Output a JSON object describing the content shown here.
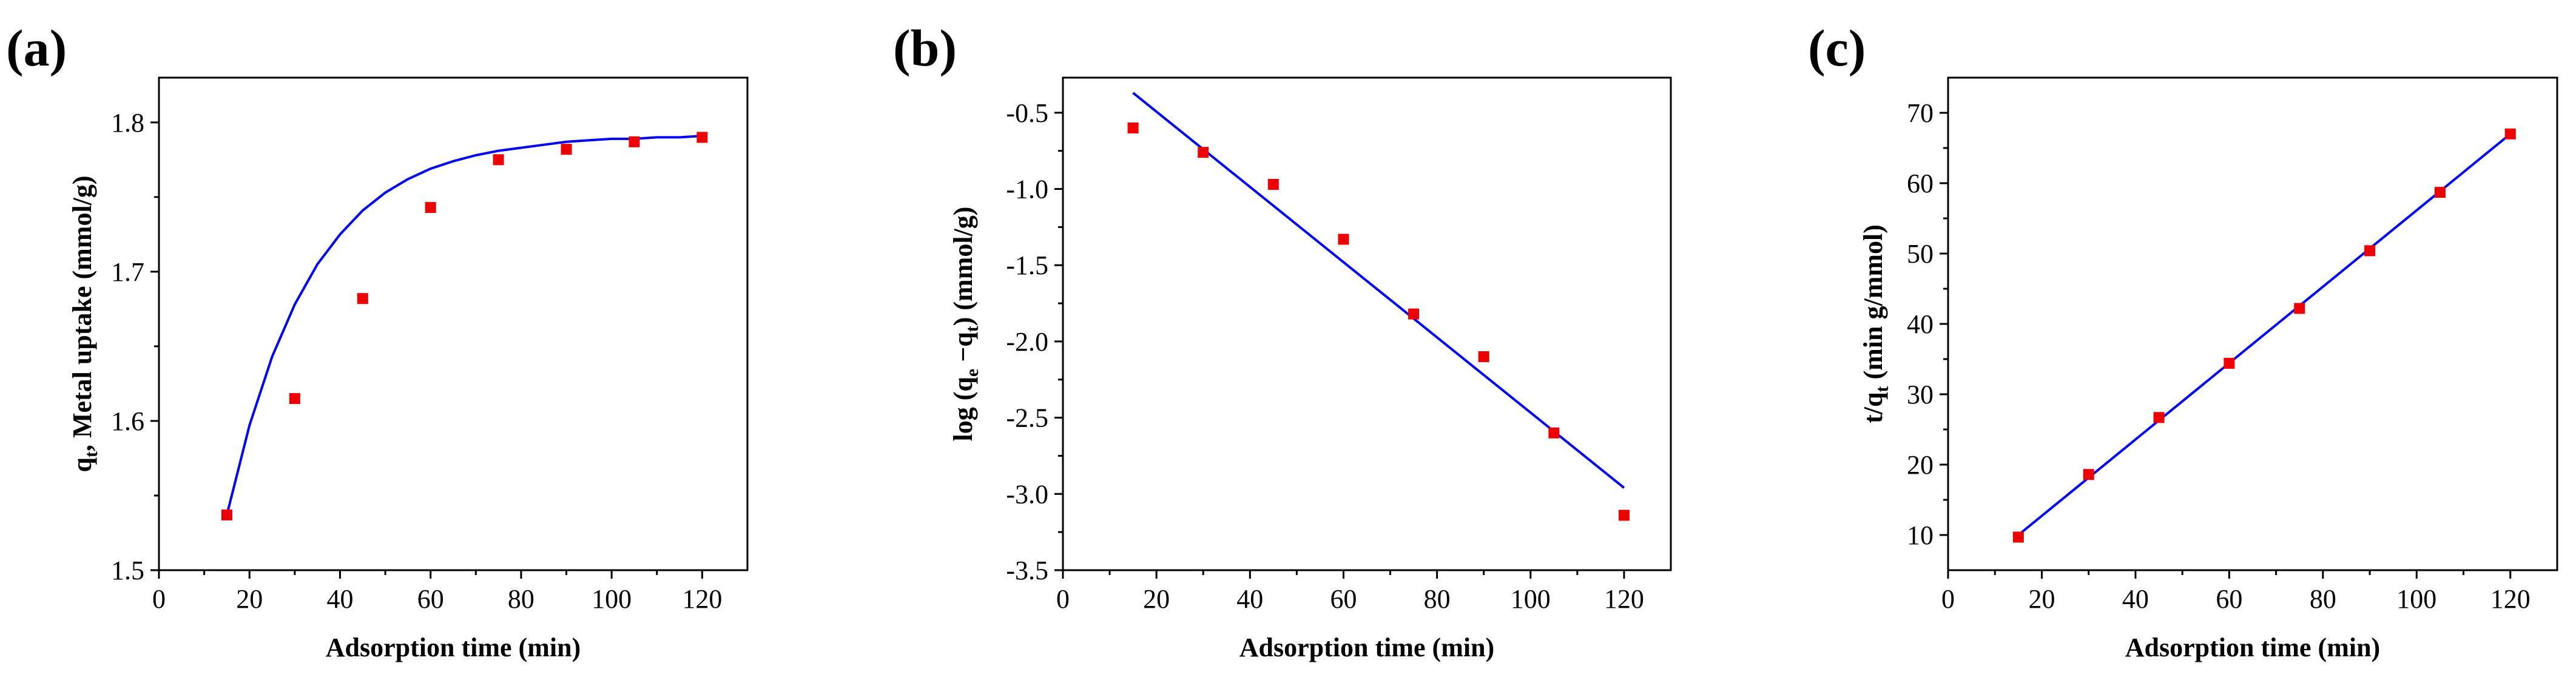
{
  "colors": {
    "points": "#ee0000",
    "fit": "#0000ee",
    "axis": "#000000"
  },
  "chart_data": [
    {
      "type": "scatter",
      "panel_label": "(a)",
      "xlabel": "Adsorption time (min)",
      "ylabel": {
        "pre": "q",
        "sub": "t",
        "post": ", Metal uptake (mmol/g)"
      },
      "xlim": [
        0,
        130
      ],
      "ylim": [
        1.5,
        1.83
      ],
      "xticks": [
        0,
        20,
        40,
        60,
        80,
        100,
        120
      ],
      "yticks": [
        1.5,
        1.6,
        1.7,
        1.8
      ],
      "ytick_labels": [
        "1.5",
        "1.6",
        "1.7",
        "1.8"
      ],
      "x": [
        15,
        30,
        45,
        60,
        75,
        90,
        105,
        120
      ],
      "y": [
        1.537,
        1.615,
        1.682,
        1.743,
        1.775,
        1.782,
        1.787,
        1.79
      ],
      "fit": {
        "model": "pseudo-first-order",
        "x": [
          15,
          20,
          25,
          30,
          35,
          40,
          45,
          50,
          55,
          60,
          65,
          70,
          75,
          80,
          85,
          90,
          95,
          100,
          105,
          110,
          115,
          120
        ],
        "y": [
          1.537,
          1.597,
          1.643,
          1.678,
          1.705,
          1.725,
          1.741,
          1.753,
          1.762,
          1.769,
          1.774,
          1.778,
          1.781,
          1.783,
          1.785,
          1.787,
          1.788,
          1.789,
          1.789,
          1.79,
          1.79,
          1.791
        ]
      }
    },
    {
      "type": "scatter",
      "panel_label": "(b)",
      "xlabel": "Adsorption time (min)",
      "ylabel": {
        "pre": "log (q",
        "sub": "e",
        "mid": " −q",
        "sub2": "t",
        "post": ") (mmol/g)"
      },
      "xlim": [
        0,
        130
      ],
      "ylim": [
        -3.5,
        -0.27
      ],
      "xticks": [
        0,
        20,
        40,
        60,
        80,
        100,
        120
      ],
      "yticks": [
        -3.5,
        -3.0,
        -2.5,
        -2.0,
        -1.5,
        -1.0,
        -0.5
      ],
      "ytick_labels": [
        "-3.5",
        "-3.0",
        "-2.5",
        "-2.0",
        "-1.5",
        "-1.0",
        "-0.5"
      ],
      "x": [
        15,
        30,
        45,
        60,
        75,
        90,
        105,
        120
      ],
      "y": [
        -0.6,
        -0.76,
        -0.97,
        -1.33,
        -1.82,
        -2.1,
        -2.6,
        -3.14
      ],
      "fit": {
        "model": "linear",
        "x": [
          15,
          120
        ],
        "y": [
          -0.37,
          -2.96
        ]
      }
    },
    {
      "type": "scatter",
      "panel_label": "(c)",
      "xlabel": "Adsorption time (min)",
      "ylabel": {
        "pre": "t/q",
        "sub": "t",
        "post": " (min g/mmol)"
      },
      "xlim": [
        0,
        130
      ],
      "ylim": [
        5,
        75
      ],
      "xticks": [
        0,
        20,
        40,
        60,
        80,
        100,
        120
      ],
      "yticks": [
        10,
        20,
        30,
        40,
        50,
        60,
        70
      ],
      "ytick_labels": [
        "10",
        "20",
        "30",
        "40",
        "50",
        "60",
        "70"
      ],
      "x": [
        15,
        30,
        45,
        60,
        75,
        90,
        105,
        120
      ],
      "y": [
        9.7,
        18.6,
        26.7,
        34.4,
        42.2,
        50.4,
        58.7,
        67.0
      ],
      "fit": {
        "model": "linear",
        "x": [
          15,
          120
        ],
        "y": [
          10.0,
          67.0
        ]
      }
    }
  ]
}
